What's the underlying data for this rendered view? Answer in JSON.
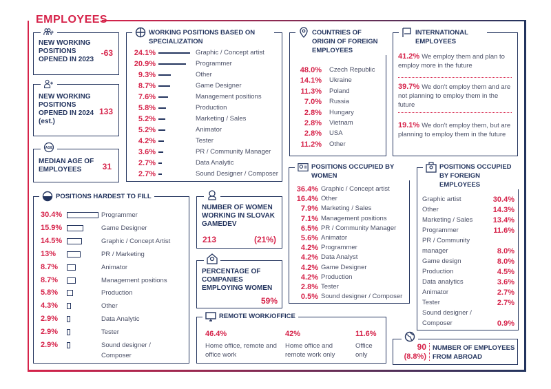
{
  "title": "EMPLOYEES",
  "colors": {
    "accent": "#d6234a",
    "navy": "#23345e"
  },
  "new_2023": {
    "label": "NEW WORKING POSITIONS OPENED IN 2023",
    "value": "-63",
    "icon": "people-plus-icon"
  },
  "new_2024": {
    "label": "NEW WORKING POSITIONS OPENED IN 2024 (est.)",
    "value": "133",
    "icon": "person-plus-icon"
  },
  "median_age": {
    "label": "MEDIAN AGE OF EMPLOYEES",
    "value": "31",
    "icon": "age-icon"
  },
  "specialization": {
    "title": "WORKING POSITIONS BASED ON SPECIALIZATION",
    "items": [
      {
        "pct": "24.1%",
        "value": 24.1,
        "label": "Graphic / Concept artist"
      },
      {
        "pct": "20.9%",
        "value": 20.9,
        "label": "Programmer"
      },
      {
        "pct": "9.3%",
        "value": 9.3,
        "label": "Other"
      },
      {
        "pct": "8.7%",
        "value": 8.7,
        "label": "Game Designer"
      },
      {
        "pct": "7.6%",
        "value": 7.6,
        "label": "Management positions"
      },
      {
        "pct": "5.8%",
        "value": 5.8,
        "label": "Production"
      },
      {
        "pct": "5.2%",
        "value": 5.2,
        "label": "Marketing / Sales"
      },
      {
        "pct": "5.2%",
        "value": 5.2,
        "label": "Animator"
      },
      {
        "pct": "4.2%",
        "value": 4.2,
        "label": "Tester"
      },
      {
        "pct": "3.6%",
        "value": 3.6,
        "label": "PR / Community Manager"
      },
      {
        "pct": "2.7%",
        "value": 2.7,
        "label": "Data Analytic"
      },
      {
        "pct": "2.7%",
        "value": 2.7,
        "label": "Sound Designer / Composer"
      }
    ]
  },
  "countries": {
    "title": "COUNTRIES OF ORIGIN OF FOREIGN EMPLOYEES",
    "items": [
      {
        "pct": "48.0%",
        "label": "Czech Republic"
      },
      {
        "pct": "14.1%",
        "label": "Ukraine"
      },
      {
        "pct": "11.3%",
        "label": "Poland"
      },
      {
        "pct": "7.0%",
        "label": "Russia"
      },
      {
        "pct": "2.8%",
        "label": "Hungary"
      },
      {
        "pct": "2.8%",
        "label": "Vietnam"
      },
      {
        "pct": "2.8%",
        "label": "USA"
      },
      {
        "pct": "11.2%",
        "label": "Other"
      }
    ]
  },
  "international": {
    "title": "INTERNATIONAL EMPLOYEES",
    "items": [
      {
        "pct": "41.2%",
        "text": "We employ them and plan to employ more in the future"
      },
      {
        "pct": "39.7%",
        "text": "We don't employ them and are not planning to employ them in the future"
      },
      {
        "pct": "19.1%",
        "text": "We don't employ them, but are planning to employ them in the future"
      }
    ]
  },
  "hardest": {
    "title": "POSITIONS HARDEST TO FILL",
    "items": [
      {
        "pct": "30.4%",
        "value": 30.4,
        "label": "Programmer"
      },
      {
        "pct": "15.9%",
        "value": 15.9,
        "label": "Game Designer"
      },
      {
        "pct": "14.5%",
        "value": 14.5,
        "label": "Graphic / Concept Artist"
      },
      {
        "pct": "13%",
        "value": 13,
        "label": "PR / Marketing"
      },
      {
        "pct": "8.7%",
        "value": 8.7,
        "label": "Animator"
      },
      {
        "pct": "8.7%",
        "value": 8.7,
        "label": "Management positions"
      },
      {
        "pct": "5.8%",
        "value": 5.8,
        "label": "Production"
      },
      {
        "pct": "4.3%",
        "value": 4.3,
        "label": "Other"
      },
      {
        "pct": "2.9%",
        "value": 2.9,
        "label": "Data Analytic"
      },
      {
        "pct": "2.9%",
        "value": 2.9,
        "label": "Tester"
      },
      {
        "pct": "2.9%",
        "value": 2.9,
        "label": "Sound designer / Composer"
      }
    ]
  },
  "women_count": {
    "label": "NUMBER OF WOMEN WORKING IN SLOVAK GAMEDEV",
    "value": "213",
    "share": "(21%)"
  },
  "women_companies": {
    "label": "PERCENTAGE OF COMPANIES EMPLOYING WOMEN",
    "value": "59%"
  },
  "remote": {
    "title": "REMOTE WORK/OFFICE",
    "items": [
      {
        "pct": "46.4%",
        "label": "Home office, remote and office work"
      },
      {
        "pct": "42%",
        "label": "Home office and remote work only"
      },
      {
        "pct": "11.6%",
        "label": "Office only"
      }
    ]
  },
  "women_positions": {
    "title": "POSITIONS OCCUPIED BY WOMEN",
    "items": [
      {
        "pct": "36.4%",
        "label": "Graphic / Concept artist"
      },
      {
        "pct": "16.4%",
        "label": "Other"
      },
      {
        "pct": "7.9%",
        "label": "Marketing / Sales"
      },
      {
        "pct": "7.1%",
        "label": "Management positions"
      },
      {
        "pct": "6.5%",
        "label": "PR / Community Manager"
      },
      {
        "pct": "5.6%",
        "label": "Animator"
      },
      {
        "pct": "4.2%",
        "label": "Programmer"
      },
      {
        "pct": "4.2%",
        "label": "Data Analyst"
      },
      {
        "pct": "4.2%",
        "label": "Game Designer"
      },
      {
        "pct": "4.2%",
        "label": "Production"
      },
      {
        "pct": "2.8%",
        "label": "Tester"
      },
      {
        "pct": "0.5%",
        "label": "Sound designer / Composer"
      }
    ]
  },
  "foreign_positions": {
    "title": "POSITIONS OCCUPIED BY FOREIGN EMPLOYEES",
    "items": [
      {
        "pct": "30.4%",
        "label": "Graphic artist"
      },
      {
        "pct": "14.3%",
        "label": "Other"
      },
      {
        "pct": "13.4%",
        "label": "Marketing / Sales"
      },
      {
        "pct": "11.6%",
        "label": "Programmer"
      },
      {
        "pct": "8.0%",
        "label": "PR / Community manager"
      },
      {
        "pct": "8.0%",
        "label": "Game design"
      },
      {
        "pct": "4.5%",
        "label": "Production"
      },
      {
        "pct": "3.6%",
        "label": "Data analytics"
      },
      {
        "pct": "2.7%",
        "label": "Animator"
      },
      {
        "pct": "2.7%",
        "label": "Tester"
      },
      {
        "pct": "0.9%",
        "label": "Sound designer / Composer"
      }
    ]
  },
  "abroad": {
    "value": "90",
    "share": "(8.8%)",
    "label": "NUMBER OF EMPLOYEES FROM ABROAD"
  }
}
